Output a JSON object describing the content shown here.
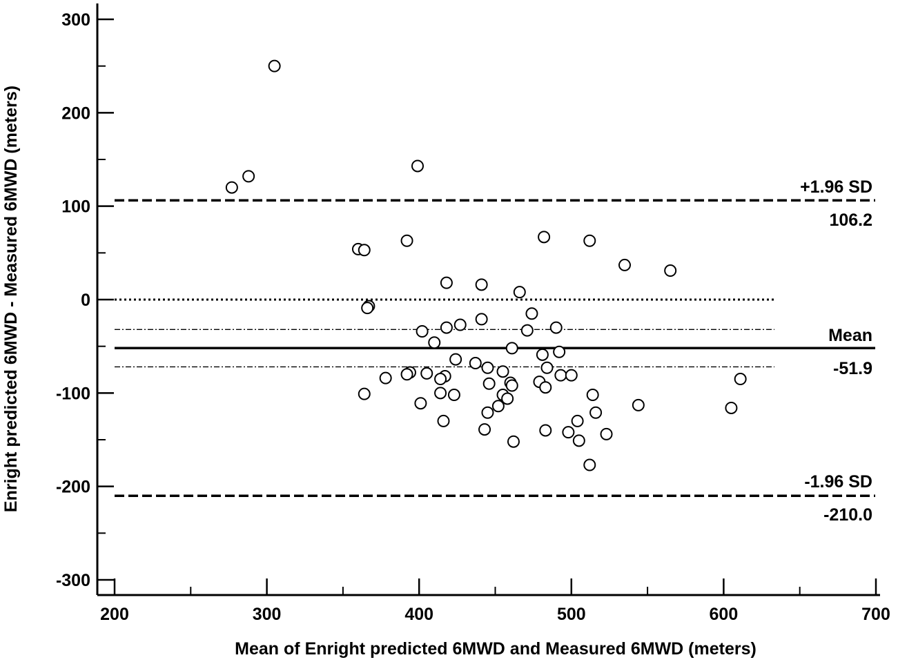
{
  "chart_data": {
    "type": "scatter",
    "title": "",
    "xlabel": "Mean of Enright predicted 6MWD and Measured 6MWD (meters)",
    "ylabel": "Enright predicted 6MWD - Measured 6MWD (meters)",
    "xlim": [
      200,
      700
    ],
    "ylim": [
      -300,
      300
    ],
    "x_ticks": [
      200,
      300,
      400,
      500,
      600,
      700
    ],
    "y_ticks": [
      300,
      200,
      100,
      0,
      -100,
      -200,
      -300
    ],
    "x_tick_labels": [
      "200",
      "300",
      "400",
      "500",
      "600",
      "700"
    ],
    "y_tick_labels": [
      "300",
      "200",
      "100",
      "0",
      "-100",
      "-200",
      "-300"
    ],
    "reference_lines": {
      "upper_loa": {
        "label": "+1.96 SD",
        "value_label": "106.2",
        "value": 106.2,
        "style": "dashed"
      },
      "mean": {
        "label": "Mean",
        "value_label": "-51.9",
        "value": -51.9,
        "style": "solid"
      },
      "mean_ci_upper": {
        "value": -32,
        "style": "dash-dot"
      },
      "mean_ci_lower": {
        "value": -72,
        "style": "dash-dot"
      },
      "zero": {
        "value": 0,
        "style": "dotted"
      },
      "lower_loa": {
        "label": "-1.96 SD",
        "value_label": "-210.0",
        "value": -210.0,
        "style": "dashed"
      }
    },
    "points": [
      [
        305,
        250
      ],
      [
        277,
        120
      ],
      [
        288,
        132
      ],
      [
        399,
        143
      ],
      [
        360,
        54
      ],
      [
        364,
        53
      ],
      [
        392,
        63
      ],
      [
        482,
        67
      ],
      [
        512,
        63
      ],
      [
        535,
        37
      ],
      [
        565,
        31
      ],
      [
        418,
        18
      ],
      [
        441,
        16
      ],
      [
        466,
        8
      ],
      [
        367,
        -7
      ],
      [
        366,
        -9
      ],
      [
        441,
        -21
      ],
      [
        474,
        -15
      ],
      [
        427,
        -27
      ],
      [
        418,
        -30
      ],
      [
        402,
        -34
      ],
      [
        490,
        -30
      ],
      [
        471,
        -33
      ],
      [
        410,
        -46
      ],
      [
        461,
        -52
      ],
      [
        492,
        -56
      ],
      [
        481,
        -59
      ],
      [
        424,
        -64
      ],
      [
        437,
        -68
      ],
      [
        445,
        -73
      ],
      [
        484,
        -73
      ],
      [
        455,
        -77
      ],
      [
        405,
        -79
      ],
      [
        394,
        -78
      ],
      [
        392,
        -80
      ],
      [
        493,
        -81
      ],
      [
        500,
        -81
      ],
      [
        378,
        -84
      ],
      [
        417,
        -82
      ],
      [
        414,
        -85
      ],
      [
        611,
        -85
      ],
      [
        446,
        -90
      ],
      [
        460,
        -89
      ],
      [
        479,
        -88
      ],
      [
        461,
        -92
      ],
      [
        483,
        -94
      ],
      [
        414,
        -100
      ],
      [
        423,
        -102
      ],
      [
        364,
        -101
      ],
      [
        455,
        -102
      ],
      [
        458,
        -106
      ],
      [
        514,
        -102
      ],
      [
        401,
        -111
      ],
      [
        452,
        -114
      ],
      [
        544,
        -113
      ],
      [
        605,
        -116
      ],
      [
        445,
        -121
      ],
      [
        516,
        -121
      ],
      [
        416,
        -130
      ],
      [
        504,
        -130
      ],
      [
        443,
        -139
      ],
      [
        483,
        -140
      ],
      [
        498,
        -142
      ],
      [
        523,
        -144
      ],
      [
        505,
        -151
      ],
      [
        462,
        -152
      ],
      [
        512,
        -177
      ]
    ]
  }
}
